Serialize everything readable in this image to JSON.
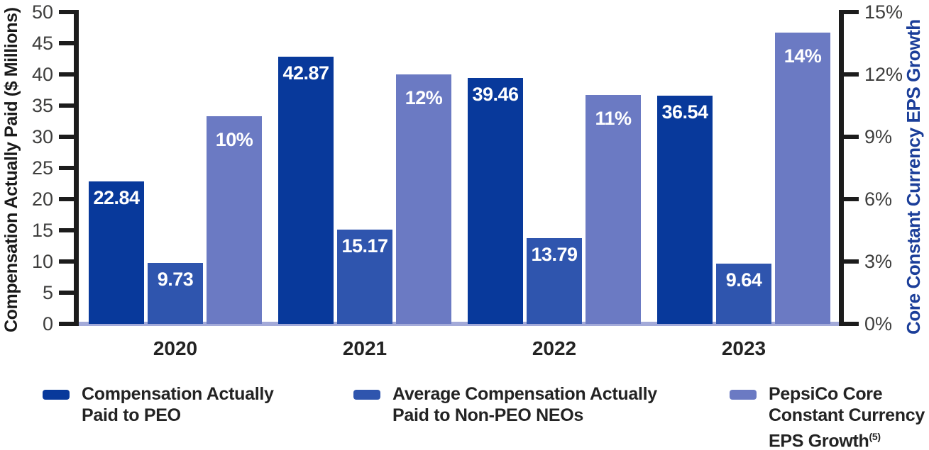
{
  "chart_data": {
    "type": "bar",
    "title": "",
    "categories": [
      "2020",
      "2021",
      "2022",
      "2023"
    ],
    "series": [
      {
        "name": "Compensation Actually Paid to PEO",
        "axis": "left",
        "color": "#08399b",
        "values": [
          22.84,
          42.87,
          39.46,
          36.54
        ],
        "data_labels": [
          "22.84",
          "42.87",
          "39.46",
          "36.54"
        ]
      },
      {
        "name": "Average Compensation Actually Paid to Non-PEO NEOs",
        "axis": "left",
        "color": "#2f55ae",
        "values": [
          9.73,
          15.17,
          13.79,
          9.64
        ],
        "data_labels": [
          "9.73",
          "15.17",
          "13.79",
          "9.64"
        ]
      },
      {
        "name": "PepsiCo Core Constant Currency EPS Growth",
        "axis": "right",
        "color": "#6b7ac3",
        "values": [
          10,
          12,
          11,
          14
        ],
        "data_labels": [
          "10%",
          "12%",
          "11%",
          "14%"
        ]
      }
    ],
    "left_axis": {
      "label": "Compensation Actually Paid ($ Millions)",
      "min": 0,
      "max": 50,
      "step": 5,
      "tick_labels": [
        "0",
        "5",
        "10",
        "15",
        "20",
        "25",
        "30",
        "35",
        "40",
        "45",
        "50"
      ]
    },
    "right_axis": {
      "label": "Core Constant Currency EPS Growth",
      "min": 0,
      "max": 15,
      "step": 3,
      "tick_labels": [
        "0%",
        "3%",
        "6%",
        "9%",
        "12%",
        "15%"
      ]
    },
    "legend": {
      "position": "bottom",
      "items": [
        {
          "lines": [
            "Compensation Actually",
            "Paid to PEO"
          ],
          "superscript": "",
          "color": "#08399b"
        },
        {
          "lines": [
            "Average Compensation Actually",
            "Paid to Non-PEO NEOs"
          ],
          "superscript": "",
          "color": "#2f55ae"
        },
        {
          "lines": [
            "PepsiCo Core",
            "Constant Currency",
            "EPS Growth"
          ],
          "superscript": "(5)",
          "color": "#6b7ac3"
        }
      ]
    },
    "grid": false
  },
  "colors": {
    "peo_bar": "#08399b",
    "neo_bar": "#2f55ae",
    "eps_bar": "#6b7ac3",
    "baseline": "#a3aad9",
    "axis_line": "#1c1c1c",
    "tick_label": "#3e3e3d",
    "category_label": "#232323",
    "left_axis_title": "#1a1a1a",
    "right_axis_title": "#1b3e99",
    "bar_label": "#ffffff",
    "legend_text": "#232323",
    "background": "#ffffff"
  }
}
